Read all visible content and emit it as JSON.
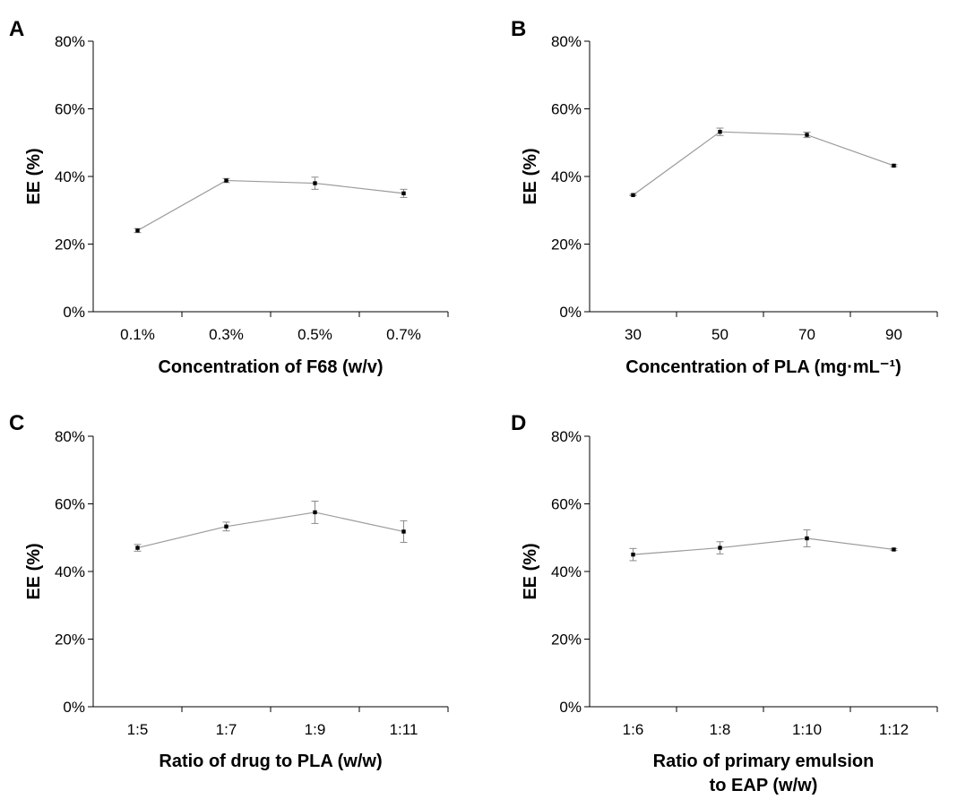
{
  "chart_data": [
    {
      "panel": "A",
      "type": "line",
      "categories": [
        "0.1%",
        "0.3%",
        "0.5%",
        "0.7%"
      ],
      "values": [
        24,
        38.8,
        38,
        35
      ],
      "errors": [
        0.6,
        0.6,
        1.8,
        1.2
      ],
      "xlabel": "Concentration of F68 (w/v)",
      "ylabel": "EE (%)",
      "ylim": [
        0,
        80
      ],
      "yticks": [
        "0%",
        "20%",
        "40%",
        "60%",
        "80%"
      ],
      "grid": false,
      "colors": {
        "line": "#9a9a9a",
        "marker": "#000000"
      }
    },
    {
      "panel": "B",
      "type": "line",
      "categories": [
        "30",
        "50",
        "70",
        "90"
      ],
      "values": [
        34.5,
        53.2,
        52.3,
        43.2
      ],
      "errors": [
        0.2,
        1.1,
        0.8,
        0.3
      ],
      "xlabel": "Concentration of PLA (mg·mL⁻¹)",
      "ylabel": "EE (%)",
      "ylim": [
        0,
        80
      ],
      "yticks": [
        "0%",
        "20%",
        "40%",
        "60%",
        "80%"
      ],
      "grid": false,
      "colors": {
        "line": "#9a9a9a",
        "marker": "#000000"
      }
    },
    {
      "panel": "C",
      "type": "line",
      "categories": [
        "1:5",
        "1:7",
        "1:9",
        "1:11"
      ],
      "values": [
        47,
        53.3,
        57.5,
        51.8
      ],
      "errors": [
        1.0,
        1.3,
        3.3,
        3.2
      ],
      "xlabel": "Ratio of drug to PLA (w/w)",
      "ylabel": "EE (%)",
      "ylim": [
        0,
        80
      ],
      "yticks": [
        "0%",
        "20%",
        "40%",
        "60%",
        "80%"
      ],
      "grid": false,
      "colors": {
        "line": "#9a9a9a",
        "marker": "#000000"
      }
    },
    {
      "panel": "D",
      "type": "line",
      "categories": [
        "1:6",
        "1:8",
        "1:10",
        "1:12"
      ],
      "values": [
        45,
        47,
        49.8,
        46.5
      ],
      "errors": [
        1.8,
        1.8,
        2.5,
        0.3
      ],
      "xlabel": "Ratio of primary emulsion to EAP (w/w)",
      "xlabel_lines": [
        "Ratio of primary emulsion",
        "to EAP (w/w)"
      ],
      "ylabel": "EE (%)",
      "ylim": [
        0,
        80
      ],
      "yticks": [
        "0%",
        "20%",
        "40%",
        "60%",
        "80%"
      ],
      "grid": false,
      "colors": {
        "line": "#9a9a9a",
        "marker": "#000000"
      }
    }
  ]
}
